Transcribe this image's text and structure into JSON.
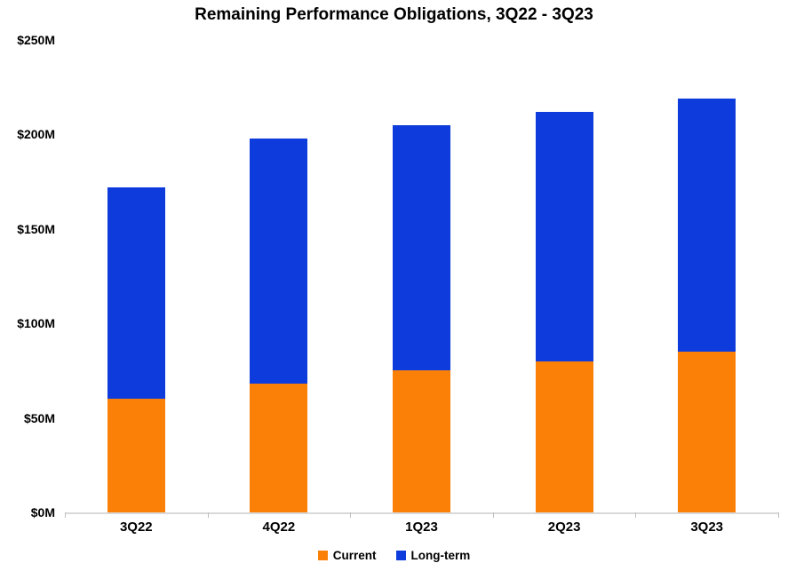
{
  "chart_data": {
    "type": "bar",
    "stacked": true,
    "title": "Remaining Performance Obligations, 3Q22 - 3Q23",
    "categories": [
      "3Q22",
      "4Q22",
      "1Q23",
      "2Q23",
      "3Q23"
    ],
    "series": [
      {
        "name": "Current",
        "color": "#FB8008",
        "values": [
          60,
          68,
          75,
          80,
          85
        ]
      },
      {
        "name": "Long-term",
        "color": "#0E3CDC",
        "values": [
          112,
          130,
          130,
          132,
          134
        ]
      }
    ],
    "totals": [
      172,
      198,
      205,
      212,
      219
    ],
    "xlabel": "",
    "ylabel": "",
    "ylim": [
      0,
      250
    ],
    "ytick_labels": [
      "$0M",
      "$50M",
      "$100M",
      "$150M",
      "$200M",
      "$250M"
    ],
    "grid": "off",
    "legend_position": "bottom"
  },
  "colors": {
    "axis_line": "#D9D9D9",
    "category_tick": "#BFBFBF",
    "text": "#000000",
    "background": "#FFFFFF"
  }
}
